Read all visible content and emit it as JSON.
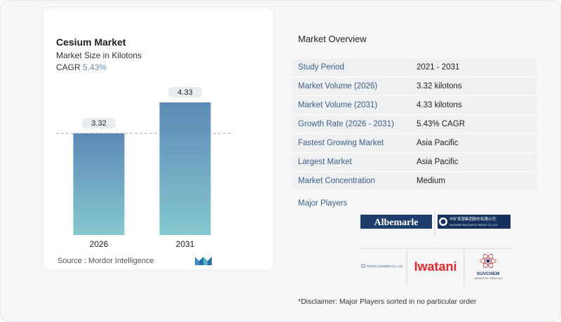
{
  "chart_data": {
    "type": "bar",
    "title": "Cesium Market",
    "subtitle": "Market Size in Kilotons",
    "cagr_label": "CAGR",
    "cagr_value": "5.43%",
    "categories": [
      "2026",
      "2031"
    ],
    "values": [
      3.32,
      4.33
    ],
    "value_labels": [
      "3.32",
      "4.33"
    ],
    "ylim": [
      0,
      4.33
    ],
    "reference_line": 3.32,
    "bar_colors": {
      "top": "#5c89b6",
      "bottom": "#86c8cf"
    },
    "label_bg": "#e9ecef",
    "source": "Source :  Mordor Intelligence"
  },
  "overview": {
    "title": "Market Overview",
    "rows": [
      {
        "key": "Study Period",
        "value": "2021 - 2031"
      },
      {
        "key": "Market Volume (2026)",
        "value": "3.32 kilotons"
      },
      {
        "key": "Market Volume (2031)",
        "value": "4.33 kilotons"
      },
      {
        "key": "Growth Rate (2026 - 2031)",
        "value": "5.43% CAGR"
      },
      {
        "key": "Fastest Growing Market",
        "value": "Asia Pacific"
      },
      {
        "key": "Largest Market",
        "value": "Asia Pacific"
      },
      {
        "key": "Market Concentration",
        "value": "Medium"
      }
    ],
    "major_players_label": "Major Players",
    "disclaimer": "*Disclaimer: Major Players sorted in no particular order"
  },
  "players": {
    "albemarle": "Albemarle",
    "sinomine": "中矿资源集团股份有限公司",
    "sinomine_en": "SINOMINE RESOURCE GROUP CO.,LTD.",
    "gogo": "GOGO SHOZEN Co.,Ltd.",
    "iwatani": "Iwatani",
    "suvchem": "SUVCHEM",
    "suvchem_sub": "LABORATORY CHEMICALS"
  },
  "colors": {
    "accent": "#3a5f8a",
    "cagr": "#6a8cb5"
  }
}
